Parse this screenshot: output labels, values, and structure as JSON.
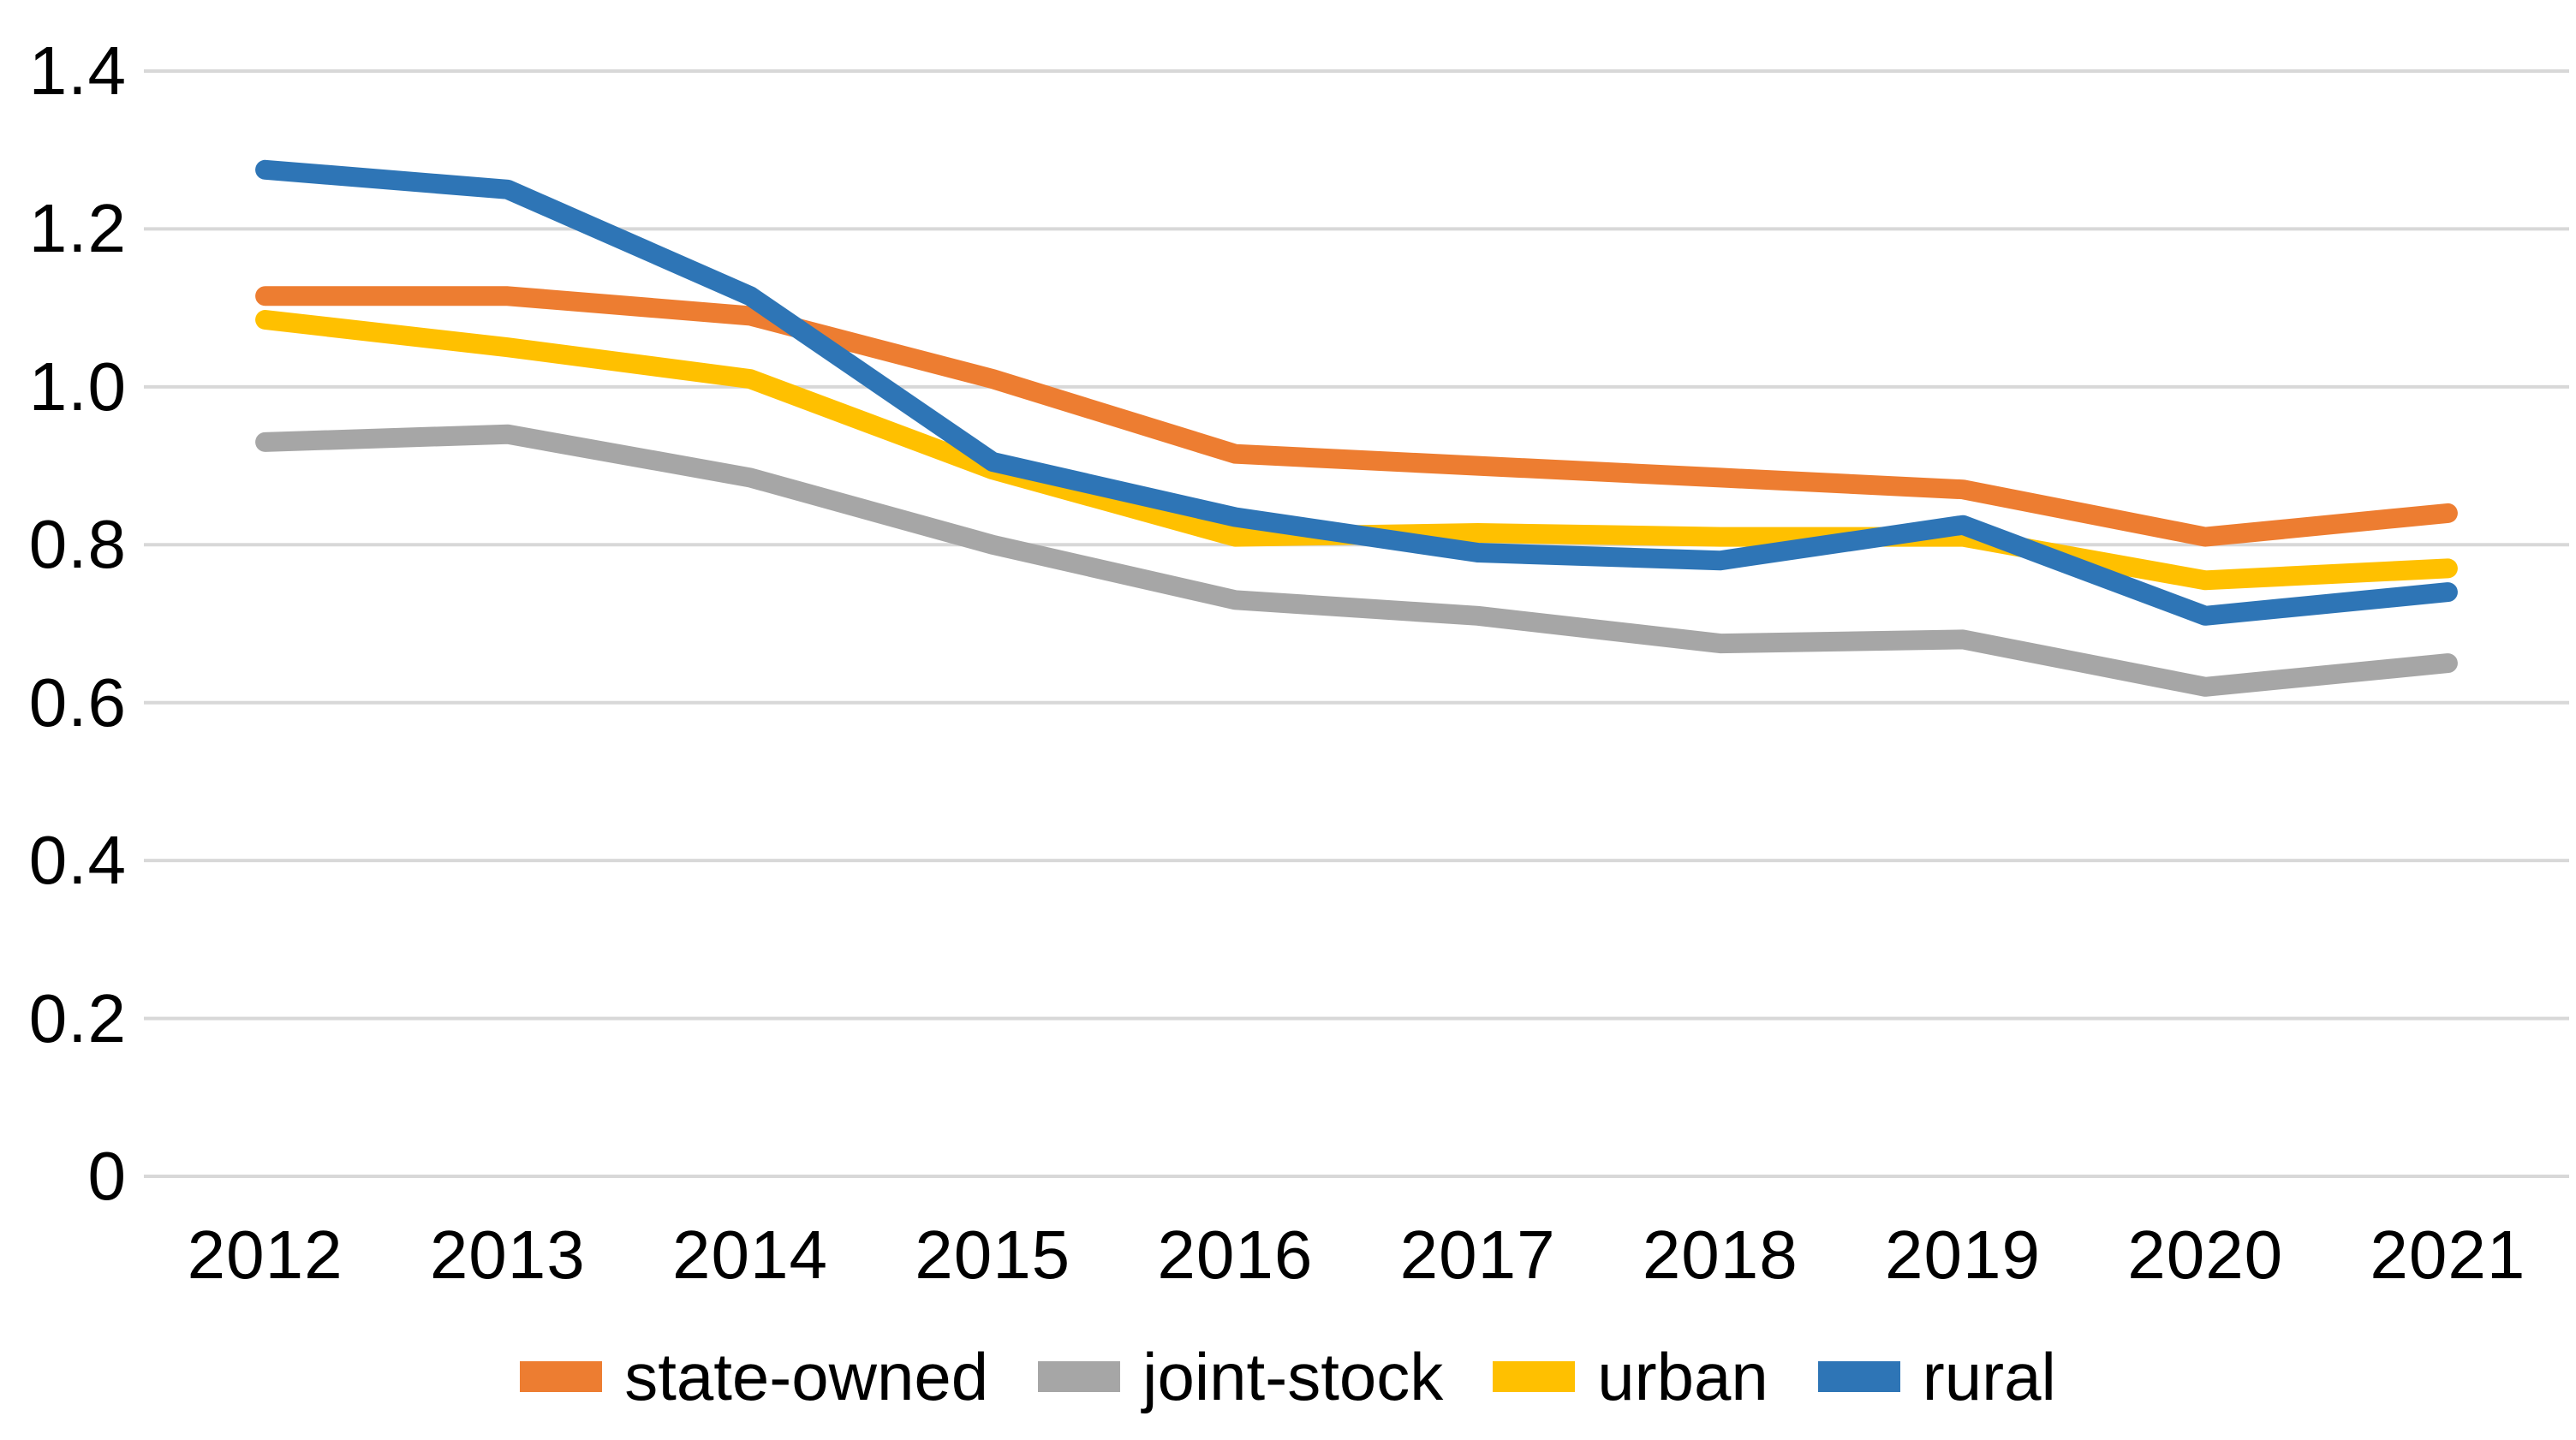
{
  "chart_data": {
    "type": "line",
    "categories": [
      "2012",
      "2013",
      "2014",
      "2015",
      "2016",
      "2017",
      "2018",
      "2019",
      "2020",
      "2021"
    ],
    "series": [
      {
        "name": "state-owned",
        "color": "#ED7D31",
        "values": [
          1.115,
          1.115,
          1.09,
          1.01,
          0.915,
          0.9,
          0.885,
          0.87,
          0.81,
          0.84
        ]
      },
      {
        "name": "joint-stock",
        "color": "#A6A6A6",
        "values": [
          0.93,
          0.94,
          0.885,
          0.8,
          0.73,
          0.71,
          0.675,
          0.68,
          0.62,
          0.65
        ]
      },
      {
        "name": "urban",
        "color": "#FFC000",
        "values": [
          1.085,
          1.05,
          1.01,
          0.895,
          0.81,
          0.815,
          0.81,
          0.81,
          0.755,
          0.77
        ]
      },
      {
        "name": "rural",
        "color": "#2E75B6",
        "values": [
          1.275,
          1.25,
          1.115,
          0.905,
          0.835,
          0.79,
          0.78,
          0.825,
          0.71,
          0.74
        ]
      }
    ],
    "ylim": [
      0,
      1.4
    ],
    "y_ticks": [
      {
        "label": "1.4",
        "value": 1.4
      },
      {
        "label": "1.2",
        "value": 1.2
      },
      {
        "label": "1.0",
        "value": 1.0
      },
      {
        "label": "0.8",
        "value": 0.8
      },
      {
        "label": "0.6",
        "value": 0.6
      },
      {
        "label": "0.4",
        "value": 0.4
      },
      {
        "label": "0.2",
        "value": 0.2
      },
      {
        "label": "0",
        "value": 0.0
      }
    ],
    "grid": true,
    "gridline_color": "#D8D8D8",
    "background_color": "#FFFFFF",
    "text_color": "#000000",
    "legend_position": "bottom"
  }
}
